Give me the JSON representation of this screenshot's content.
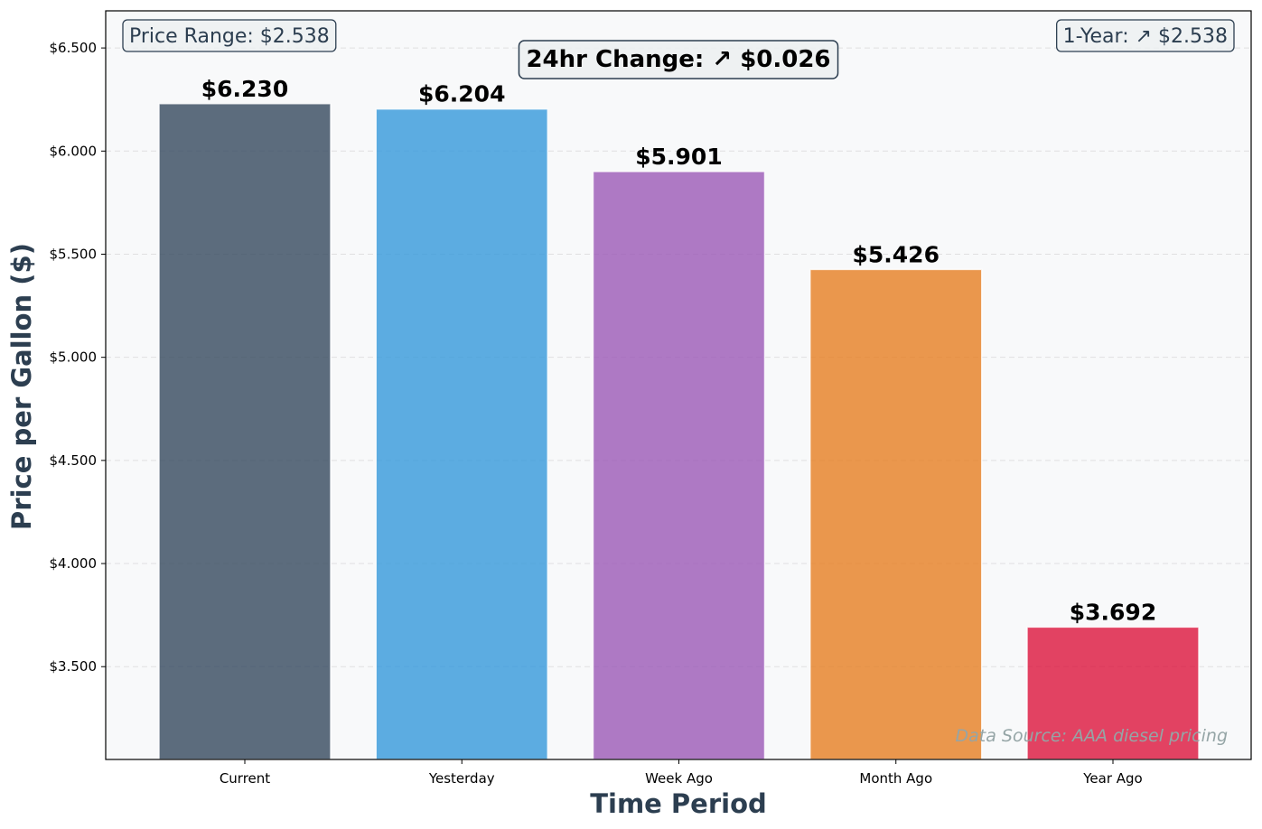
{
  "chart_data": {
    "type": "bar",
    "categories": [
      "Current",
      "Yesterday",
      "Week Ago",
      "Month Ago",
      "Year Ago"
    ],
    "values": [
      6.23,
      6.204,
      5.901,
      5.426,
      3.692
    ],
    "value_labels": [
      "$6.230",
      "$6.204",
      "$5.901",
      "$5.426",
      "$3.692"
    ],
    "colors": [
      "#34495e",
      "#3498db",
      "#9b59b6",
      "#e67e22",
      "#dc143c"
    ],
    "xlabel": "Time Period",
    "ylabel": "Price per Gallon ($)",
    "ylim": [
      3.05,
      6.68
    ],
    "yticks": [
      3.5,
      4.0,
      4.5,
      5.0,
      5.5,
      6.0,
      6.5
    ],
    "ytick_labels": [
      "$3.500",
      "$4.000",
      "$4.500",
      "$5.000",
      "$5.500",
      "$6.000",
      "$6.500"
    ],
    "grid": "horizontal dashed",
    "annotations": {
      "price_range": "Price Range: $2.538",
      "one_year": "1-Year: ↗ $2.538",
      "change_24hr": "24hr Change: ↗ $0.026",
      "source": "Data Source: AAA diesel pricing"
    }
  }
}
